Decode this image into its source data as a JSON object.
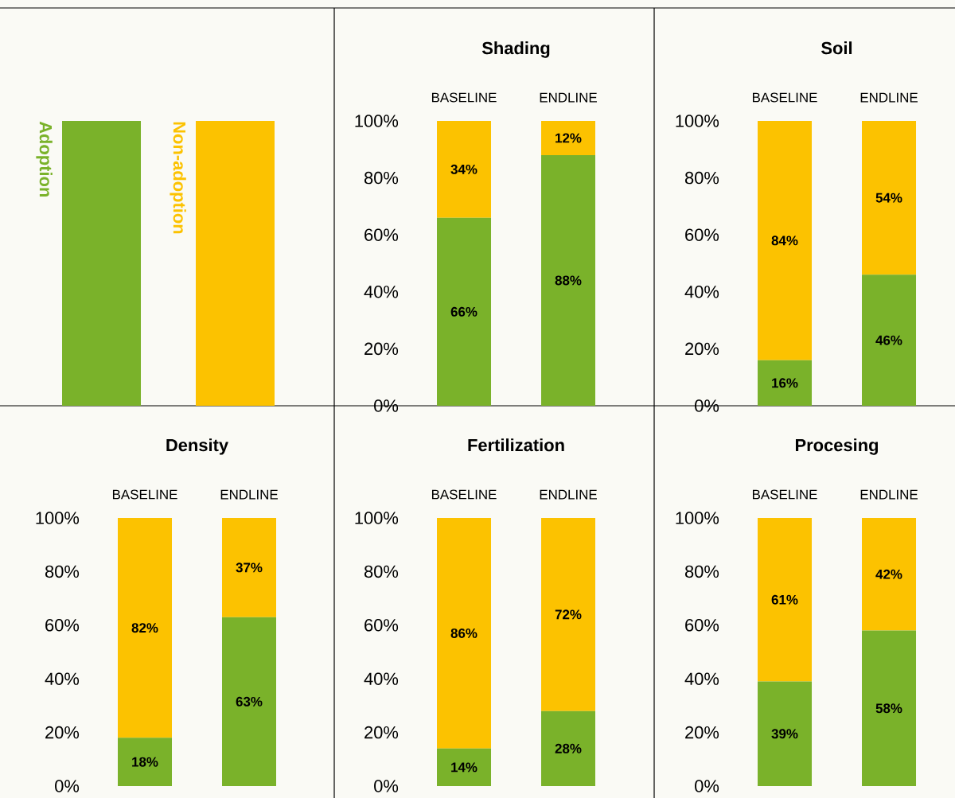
{
  "chart_data": [
    {
      "type": "bar",
      "stacked": true,
      "title": "Shading",
      "categories": [
        "BASELINE",
        "ENDLINE"
      ],
      "legend": "left",
      "series": [
        {
          "name": "Adoption",
          "color": "#7ab22a",
          "values": [
            66,
            88
          ],
          "value_labels": [
            "66%",
            "88%"
          ]
        },
        {
          "name": "Non-adoption",
          "color": "#fcc200",
          "values": [
            34,
            12
          ],
          "value_labels": [
            "34%",
            "12%"
          ]
        }
      ],
      "ylim": [
        0,
        100
      ],
      "yticks": [
        {
          "value": 0,
          "label": "0%"
        },
        {
          "value": 20,
          "label": "20%"
        },
        {
          "value": 40,
          "label": "40%"
        },
        {
          "value": 60,
          "label": "60%"
        },
        {
          "value": 80,
          "label": "80%"
        },
        {
          "value": 100,
          "label": "100%"
        }
      ]
    },
    {
      "type": "bar",
      "stacked": true,
      "title": "Soil",
      "categories": [
        "BASELINE",
        "ENDLINE"
      ],
      "series": [
        {
          "color": "#7ab22a",
          "values": [
            16,
            46
          ],
          "value_labels": [
            "16%",
            "46%"
          ]
        },
        {
          "color": "#fcc200",
          "values": [
            84,
            54
          ],
          "value_labels": [
            "84%",
            "54%"
          ]
        }
      ],
      "ylim": [
        0,
        100
      ],
      "yticks": [
        {
          "value": 0,
          "label": "0%"
        },
        {
          "value": 20,
          "label": "20%"
        },
        {
          "value": 40,
          "label": "40%"
        },
        {
          "value": 60,
          "label": "60%"
        },
        {
          "value": 80,
          "label": "80%"
        },
        {
          "value": 100,
          "label": "100%"
        }
      ]
    },
    {
      "type": "bar",
      "stacked": true,
      "title": "Density",
      "categories": [
        "BASELINE",
        "ENDLINE"
      ],
      "series": [
        {
          "color": "#7ab22a",
          "values": [
            18,
            63
          ],
          "value_labels": [
            "18%",
            "63%"
          ]
        },
        {
          "color": "#fcc200",
          "values": [
            82,
            37
          ],
          "value_labels": [
            "82%",
            "37%"
          ]
        }
      ],
      "ylim": [
        0,
        100
      ],
      "yticks": [
        {
          "value": 0,
          "label": "0%"
        },
        {
          "value": 20,
          "label": "20%"
        },
        {
          "value": 40,
          "label": "40%"
        },
        {
          "value": 60,
          "label": "60%"
        },
        {
          "value": 80,
          "label": "80%"
        },
        {
          "value": 100,
          "label": "100%"
        }
      ]
    },
    {
      "type": "bar",
      "stacked": true,
      "title": "Fertilization",
      "categories": [
        "BASELINE",
        "ENDLINE"
      ],
      "series": [
        {
          "color": "#7ab22a",
          "values": [
            14,
            28
          ],
          "value_labels": [
            "14%",
            "28%"
          ]
        },
        {
          "color": "#fcc200",
          "values": [
            86,
            72
          ],
          "value_labels": [
            "86%",
            "72%"
          ]
        }
      ],
      "ylim": [
        0,
        100
      ],
      "yticks": [
        {
          "value": 0,
          "label": "0%"
        },
        {
          "value": 20,
          "label": "20%"
        },
        {
          "value": 40,
          "label": "40%"
        },
        {
          "value": 60,
          "label": "60%"
        },
        {
          "value": 80,
          "label": "80%"
        },
        {
          "value": 100,
          "label": "100%"
        }
      ]
    },
    {
      "type": "bar",
      "stacked": true,
      "title": "Procesing",
      "categories": [
        "BASELINE",
        "ENDLINE"
      ],
      "series": [
        {
          "color": "#7ab22a",
          "values": [
            39,
            58
          ],
          "value_labels": [
            "39%",
            "58%"
          ]
        },
        {
          "color": "#fcc200",
          "values": [
            61,
            42
          ],
          "value_labels": [
            "61%",
            "42%"
          ]
        }
      ],
      "ylim": [
        0,
        100
      ],
      "yticks": [
        {
          "value": 0,
          "label": "0%"
        },
        {
          "value": 20,
          "label": "20%"
        },
        {
          "value": 40,
          "label": "40%"
        },
        {
          "value": 60,
          "label": "60%"
        },
        {
          "value": 80,
          "label": "80%"
        },
        {
          "value": 100,
          "label": "100%"
        }
      ]
    }
  ]
}
